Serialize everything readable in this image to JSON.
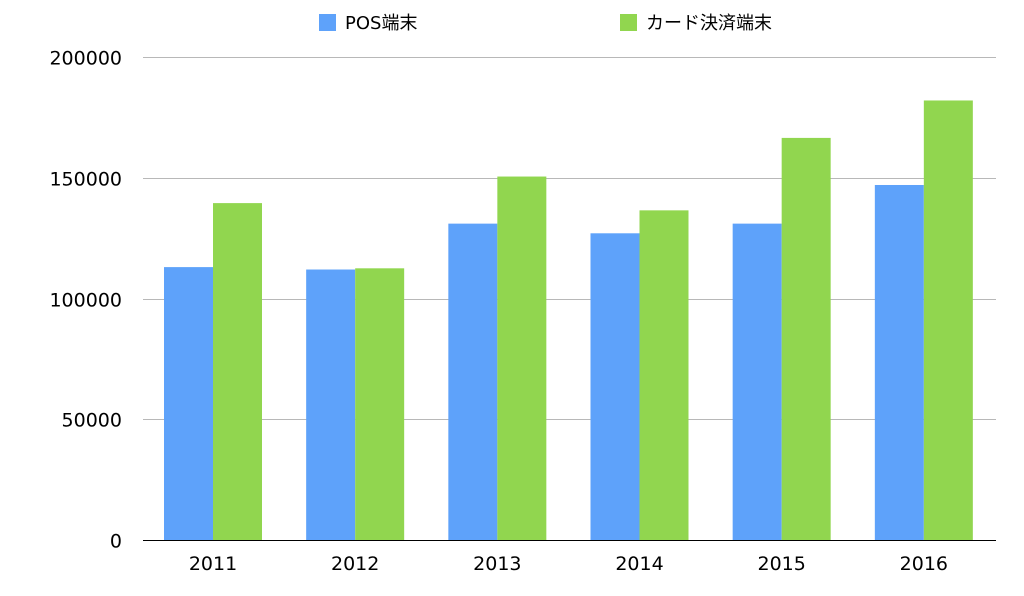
{
  "chart_data": {
    "type": "bar",
    "categories": [
      "2011",
      "2012",
      "2013",
      "2014",
      "2015",
      "2016"
    ],
    "series": [
      {
        "name": "POS端末",
        "color": "#5ea2fa",
        "values": [
          113000,
          112000,
          131000,
          127000,
          131000,
          147000
        ]
      },
      {
        "name": "カード決済端末",
        "color": "#91d64f",
        "values": [
          139500,
          112500,
          150500,
          136500,
          166500,
          182000
        ]
      }
    ],
    "ylim": [
      0,
      200000
    ],
    "yticks": [
      0,
      50000,
      100000,
      150000,
      200000
    ],
    "grid": true,
    "legend_position": "top-center"
  }
}
